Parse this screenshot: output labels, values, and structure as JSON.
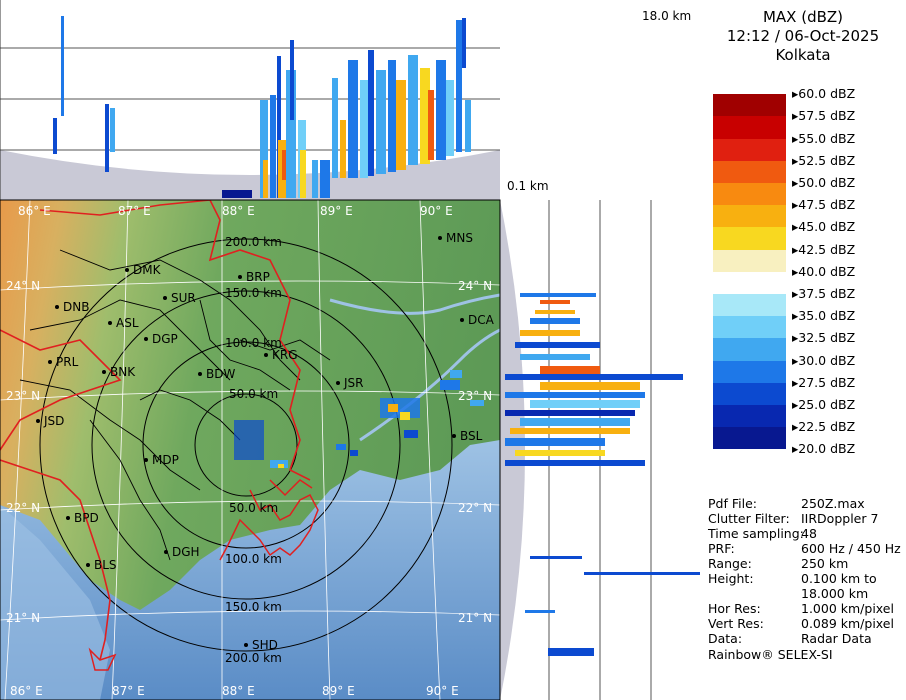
{
  "header": {
    "product": "MAX (dBZ)",
    "datetime": "12:12 / 06-Oct-2025",
    "station": "Kolkata"
  },
  "height_labels": {
    "top": "18.0 km",
    "bottom": "0.1 km"
  },
  "legend": {
    "entries": [
      {
        "label": "60.0 dBZ",
        "color": "#ffffff"
      },
      {
        "label": "57.5 dBZ",
        "color": "#a00000"
      },
      {
        "label": "55.0 dBZ",
        "color": "#c80000"
      },
      {
        "label": "52.5 dBZ",
        "color": "#e02010"
      },
      {
        "label": "50.0 dBZ",
        "color": "#f05a10"
      },
      {
        "label": "47.5 dBZ",
        "color": "#f88a10"
      },
      {
        "label": "45.0 dBZ",
        "color": "#f8b010"
      },
      {
        "label": "42.5 dBZ",
        "color": "#f8d820"
      },
      {
        "label": "40.0 dBZ",
        "color": "#f8f0c0"
      },
      {
        "label": "37.5 dBZ",
        "color": "#ffffff"
      },
      {
        "label": "35.0 dBZ",
        "color": "#a8e8f8"
      },
      {
        "label": "32.5 dBZ",
        "color": "#70cff8"
      },
      {
        "label": "30.0 dBZ",
        "color": "#40a8f0"
      },
      {
        "label": "27.5 dBZ",
        "color": "#1e78e8"
      },
      {
        "label": "25.0 dBZ",
        "color": "#0c4ad0"
      },
      {
        "label": "22.5 dBZ",
        "color": "#0828b0"
      },
      {
        "label": "20.0 dBZ",
        "color": "#081890"
      }
    ]
  },
  "info": [
    {
      "key": "Pdf File:",
      "value": "250Z.max"
    },
    {
      "key": "Clutter Filter:",
      "value": "IIRDoppler 7"
    },
    {
      "key": "Time sampling:",
      "value": "48"
    },
    {
      "key": "PRF:",
      "value": "600 Hz / 450 Hz"
    },
    {
      "key": "Range:",
      "value": "250 km"
    },
    {
      "key": "Height:",
      "value": "0.100 km to"
    },
    {
      "key": "",
      "value": "18.000 km"
    },
    {
      "key": "Hor Res:",
      "value": "1.000 km/pixel"
    },
    {
      "key": "Vert Res:",
      "value": "0.089 km/pixel"
    },
    {
      "key": "Data:",
      "value": "Radar Data"
    }
  ],
  "footer": "Rainbow® SELEX-SI",
  "map": {
    "lon_labels": [
      "86° E",
      "87° E",
      "88° E",
      "89° E",
      "90° E"
    ],
    "lat_labels": [
      "24° N",
      "23° N",
      "22° N",
      "21° N"
    ],
    "range_labels": [
      "50.0 km",
      "100.0 km",
      "150.0 km",
      "200.0 km"
    ],
    "stations": [
      "DMK",
      "BRP",
      "MNS",
      "DNB",
      "SUR",
      "ASL",
      "DGP",
      "KRG",
      "DCA",
      "PRL",
      "BNK",
      "BDW",
      "JSR",
      "JSD",
      "BSL",
      "MDP",
      "BPD",
      "DGH",
      "BLS",
      "SHD"
    ]
  }
}
